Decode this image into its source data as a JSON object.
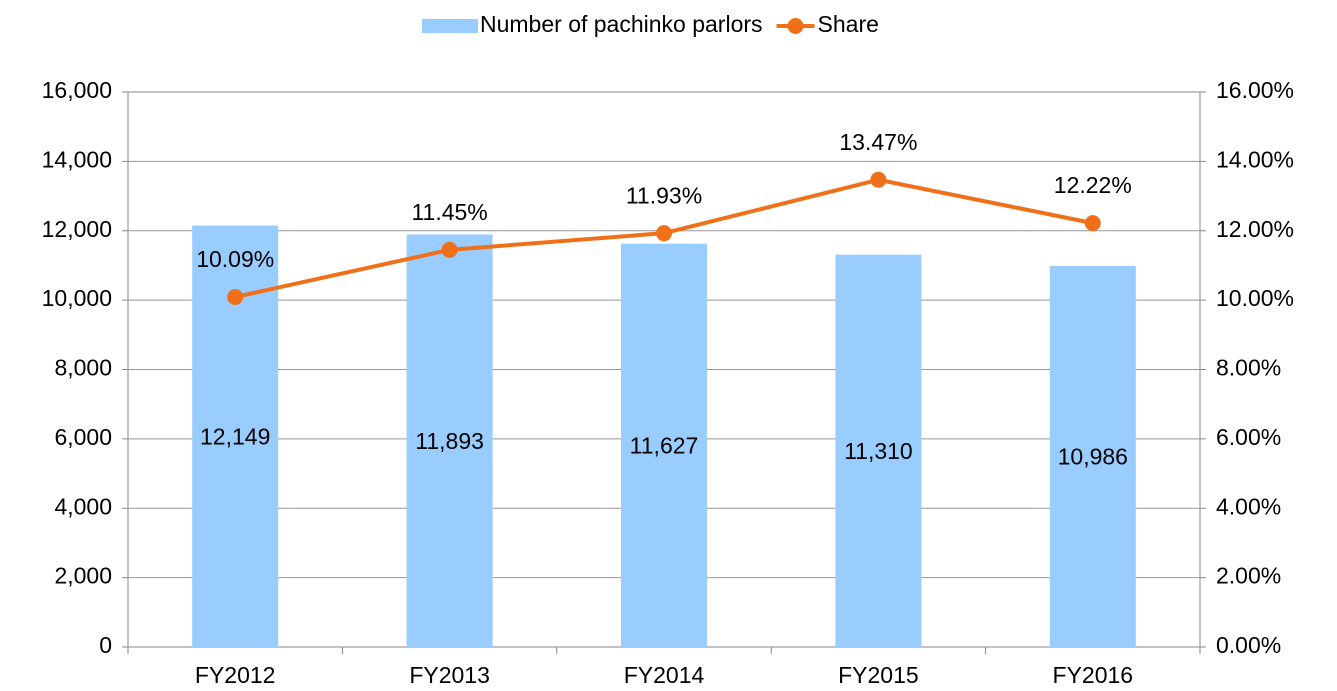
{
  "chart_data": {
    "type": "combo",
    "categories": [
      "FY2012",
      "FY2013",
      "FY2014",
      "FY2015",
      "FY2016"
    ],
    "series": [
      {
        "name": "Number of pachinko parlors",
        "type": "bar",
        "color": "#99ccff",
        "values": [
          12149,
          11893,
          11627,
          11310,
          10986
        ],
        "value_labels": [
          "12,149",
          "11,893",
          "11,627",
          "11,310",
          "10,986"
        ]
      },
      {
        "name": "Share",
        "type": "line",
        "axis": "y2",
        "color": "#f07019",
        "values": [
          10.09,
          11.45,
          11.93,
          13.47,
          12.22
        ],
        "value_labels": [
          "10.09%",
          "11.45%",
          "11.93%",
          "13.47%",
          "12.22%"
        ]
      }
    ],
    "ylim": [
      0,
      16000
    ],
    "yticks": [
      0,
      {
        "value": 2000,
        "label": "2,000"
      },
      {
        "value": 4000,
        "label": "4,000"
      },
      {
        "value": 6000,
        "label": "6,000"
      },
      {
        "value": 8000,
        "label": "8,000"
      },
      {
        "value": 10000,
        "label": "10,000"
      },
      {
        "value": 12000,
        "label": "12,000"
      },
      {
        "value": 14000,
        "label": "14,000"
      },
      {
        "value": 16000,
        "label": "16,000"
      }
    ],
    "y2lim": [
      0,
      16
    ],
    "y2ticks": [
      {
        "value": 0,
        "label": "0.00%"
      },
      {
        "value": 2,
        "label": "2.00%"
      },
      {
        "value": 4,
        "label": "4.00%"
      },
      {
        "value": 6,
        "label": "6.00%"
      },
      {
        "value": 8,
        "label": "8.00%"
      },
      {
        "value": 10,
        "label": "10.00%"
      },
      {
        "value": 12,
        "label": "12.00%"
      },
      {
        "value": 14,
        "label": "14.00%"
      },
      {
        "value": 16,
        "label": "16.00%"
      }
    ],
    "grid": true,
    "legend": "top"
  }
}
